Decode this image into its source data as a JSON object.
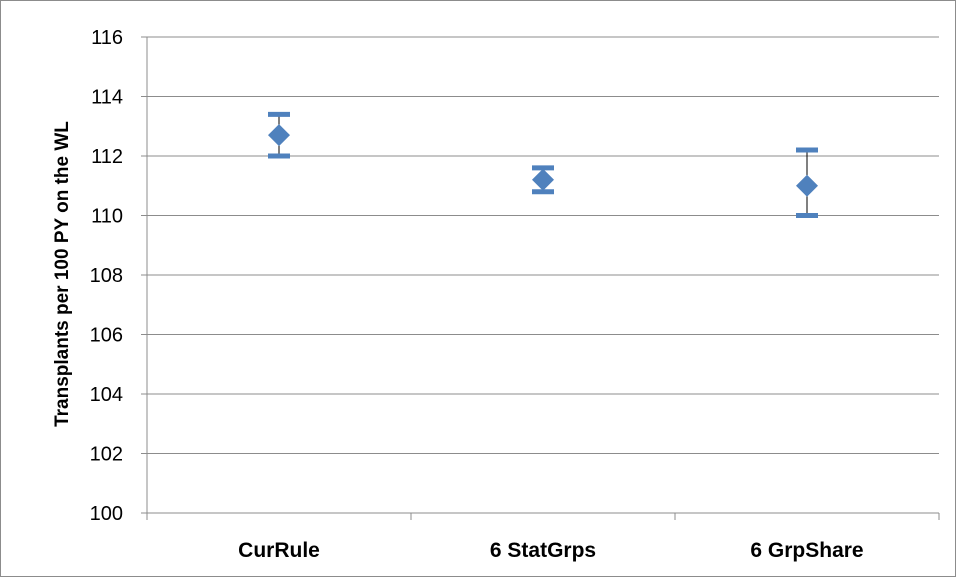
{
  "chart_data": {
    "type": "scatter",
    "title": "",
    "xlabel": "",
    "ylabel": "Transplants per 100 PY on the WL",
    "categories": [
      "CurRule",
      "6 StatGrps",
      "6 GrpShare"
    ],
    "series": [
      {
        "values": [
          112.7,
          111.2,
          111.0
        ],
        "error_low": [
          112.0,
          110.8,
          110.0
        ],
        "error_high": [
          113.4,
          111.6,
          112.2
        ]
      }
    ],
    "ylim": [
      100,
      116
    ],
    "yticks": [
      100,
      102,
      104,
      106,
      108,
      110,
      112,
      114,
      116
    ],
    "grid": true,
    "legend": "none",
    "colors": {
      "marker": "#4f81bd",
      "grid": "#8c8c8c",
      "error_cap": "#4f81bd",
      "error_stem": "#000000"
    }
  }
}
